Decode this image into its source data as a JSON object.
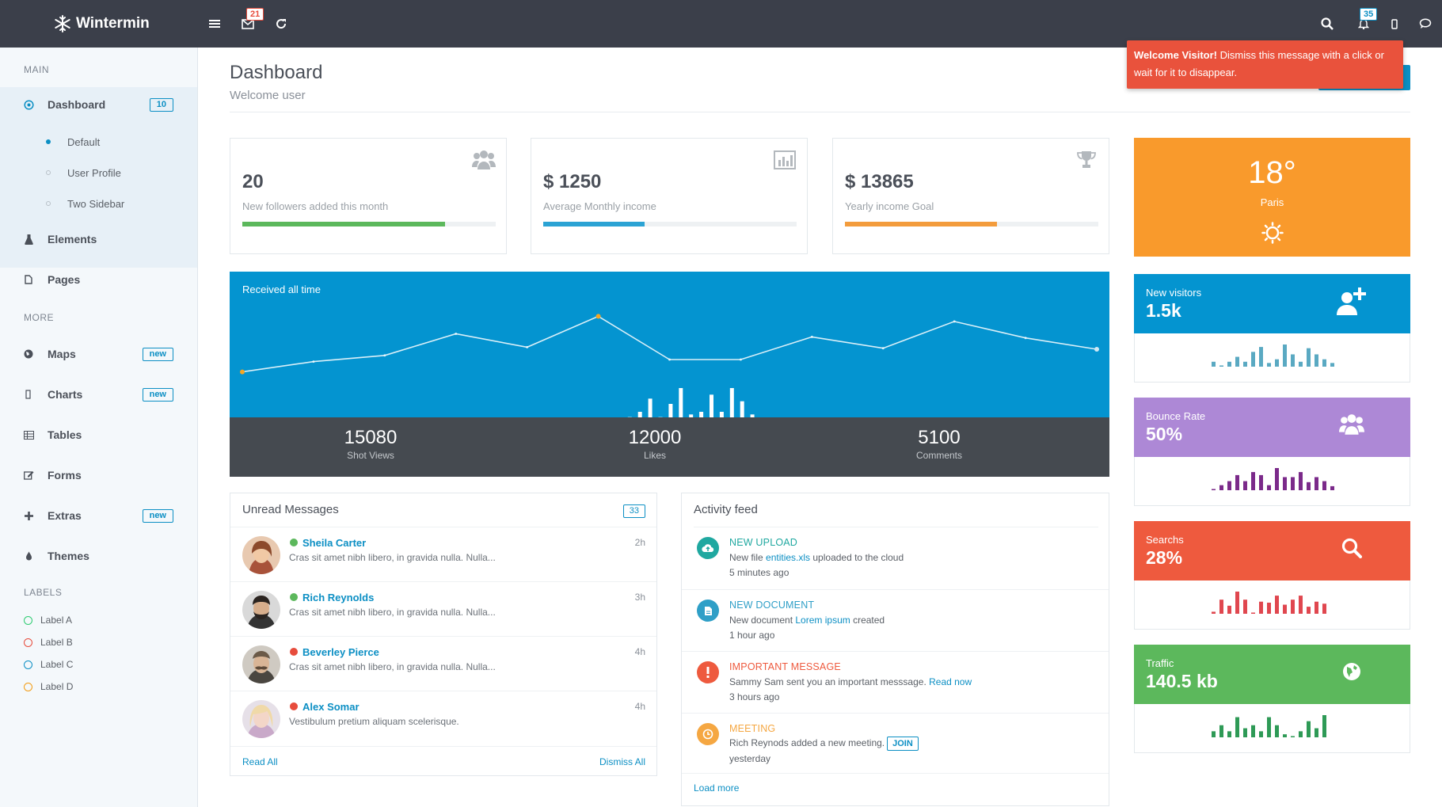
{
  "app": {
    "brand": "Wintermin",
    "mail_badge": "21",
    "notif_badge": "35"
  },
  "toast": {
    "bold": "Welcome Visitor!",
    "text": " Dismiss this message with a click or wait for it to disappear."
  },
  "sidebar": {
    "main_heading": "MAIN",
    "more_heading": "MORE",
    "labels_heading": "LABELS",
    "dashboard": {
      "label": "Dashboard",
      "badge": "10",
      "icon": "target-icon"
    },
    "sub_items": [
      {
        "label": "Default",
        "active": true
      },
      {
        "label": "User Profile",
        "active": false
      },
      {
        "label": "Two Sidebar",
        "active": false
      }
    ],
    "elements": {
      "label": "Elements",
      "icon": "flask-icon"
    },
    "pages": {
      "label": "Pages",
      "icon": "file-icon"
    },
    "maps": {
      "label": "Maps",
      "badge": "new",
      "icon": "globe-icon"
    },
    "charts": {
      "label": "Charts",
      "badge": "new",
      "icon": "chart-icon"
    },
    "tables": {
      "label": "Tables",
      "icon": "table-icon"
    },
    "forms": {
      "label": "Forms",
      "icon": "edit-icon"
    },
    "extras": {
      "label": "Extras",
      "badge": "new",
      "icon": "plus-icon"
    },
    "themes": {
      "label": "Themes",
      "icon": "drop-icon"
    },
    "labels": [
      {
        "label": "Label A",
        "color": "#2ecc71"
      },
      {
        "label": "Label B",
        "color": "#e74c3c"
      },
      {
        "label": "Label C",
        "color": "#0c8fc4"
      },
      {
        "label": "Label D",
        "color": "#f39c12"
      }
    ]
  },
  "header": {
    "title": "Dashboard",
    "subtitle": "Welcome user"
  },
  "stat_cards": [
    {
      "value": "20",
      "label": "New followers added this month",
      "progress": 0.8,
      "color": "#5cb85c",
      "icon": "users-icon"
    },
    {
      "value": "$ 1250",
      "label": "Average Monthly income",
      "progress": 0.4,
      "color": "#2ba3d4",
      "icon": "bar-chart-icon"
    },
    {
      "value": "$ 13865",
      "label": "Yearly income Goal",
      "progress": 0.6,
      "color": "#f39c3c",
      "icon": "trophy-icon"
    }
  ],
  "main_chart": {
    "title": "Received all time",
    "stats": [
      {
        "value": "15080",
        "label": "Shot Views"
      },
      {
        "value": "12000",
        "label": "Likes"
      },
      {
        "value": "5100",
        "label": "Comments"
      }
    ]
  },
  "chart_data": [
    {
      "type": "line",
      "title": "Received all time",
      "values": [
        18,
        28,
        34,
        55,
        42,
        72,
        30,
        30,
        52,
        41,
        67,
        51,
        40
      ],
      "highlight_points": [
        0,
        5,
        12
      ],
      "ylim": [
        0,
        100
      ]
    },
    {
      "type": "bar",
      "values": [
        1,
        5,
        8,
        12,
        22,
        8,
        18,
        30,
        10,
        12,
        25,
        12,
        30,
        20,
        10
      ],
      "ylim": [
        0,
        30
      ]
    }
  ],
  "weather": {
    "temp": "18°",
    "city": "Paris",
    "icon": "sun-icon"
  },
  "minis": [
    {
      "label": "New visitors",
      "value": "1.5k",
      "color": "#0494d0",
      "spark_color": "#5aa9c2",
      "icon": "user-add-icon",
      "spark": [
        4,
        1,
        4,
        8,
        4,
        12,
        16,
        3,
        6,
        18,
        10,
        4,
        15,
        10,
        6,
        3
      ]
    },
    {
      "label": "Bounce Rate",
      "value": "50%",
      "color": "#ad88d6",
      "spark_color": "#7b2a8a",
      "icon": "users-icon",
      "spark": [
        1,
        5,
        9,
        15,
        9,
        18,
        15,
        5,
        22,
        13,
        13,
        18,
        8,
        13,
        9,
        4
      ]
    },
    {
      "label": "Searchs",
      "value": "28%",
      "color": "#ee5a3e",
      "spark_color": "#e0474f",
      "icon": "search-icon",
      "spark": [
        2,
        14,
        8,
        22,
        14,
        1,
        12,
        11,
        18,
        9,
        14,
        18,
        7,
        12,
        10
      ]
    },
    {
      "label": "Traffic",
      "value": "140.5 kb",
      "color": "#5cb85c",
      "spark_color": "#2e9a56",
      "icon": "globe-icon",
      "spark": [
        6,
        12,
        6,
        20,
        9,
        12,
        6,
        20,
        12,
        3,
        1,
        6,
        16,
        9,
        22
      ]
    }
  ],
  "messages": {
    "title": "Unread Messages",
    "count": "33",
    "items": [
      {
        "name": "Sheila Carter",
        "text": "Cras sit amet nibh libero, in gravida nulla. Nulla...",
        "time": "2h",
        "status": "#5cb85c"
      },
      {
        "name": "Rich Reynolds",
        "text": "Cras sit amet nibh libero, in gravida nulla. Nulla...",
        "time": "3h",
        "status": "#5cb85c"
      },
      {
        "name": "Beverley Pierce",
        "text": "Cras sit amet nibh libero, in gravida nulla. Nulla...",
        "time": "4h",
        "status": "#e74c3c"
      },
      {
        "name": "Alex Somar",
        "text": "Vestibulum pretium aliquam scelerisque.",
        "time": "4h",
        "status": "#e74c3c"
      }
    ],
    "read_all": "Read All",
    "dismiss_all": "Dismiss All"
  },
  "activity": {
    "title": "Activity feed",
    "items": [
      {
        "title": "NEW UPLOAD",
        "color": "#1fa8a0",
        "icon": "cloud-upload-icon",
        "pre": "New file ",
        "link": "entities.xls",
        "post": " uploaded to the cloud",
        "time": "5 minutes ago"
      },
      {
        "title": "NEW DOCUMENT",
        "color": "#2f9fc7",
        "icon": "document-icon",
        "pre": "New document ",
        "link": "Lorem ipsum",
        "post": " created",
        "time": "1 hour ago"
      },
      {
        "title": "IMPORTANT MESSAGE",
        "color": "#ee5a3e",
        "icon": "alert-icon",
        "pre": "Sammy Sam sent you an important messsage. ",
        "link": "Read now",
        "post": "",
        "time": "3 hours ago"
      },
      {
        "title": "MEETING",
        "color": "#f5a742",
        "icon": "clock-icon",
        "pre": "Rich Reynods added a new meeting.",
        "button": "JOIN",
        "time": "yesterday"
      }
    ],
    "load_more": "Load more"
  }
}
